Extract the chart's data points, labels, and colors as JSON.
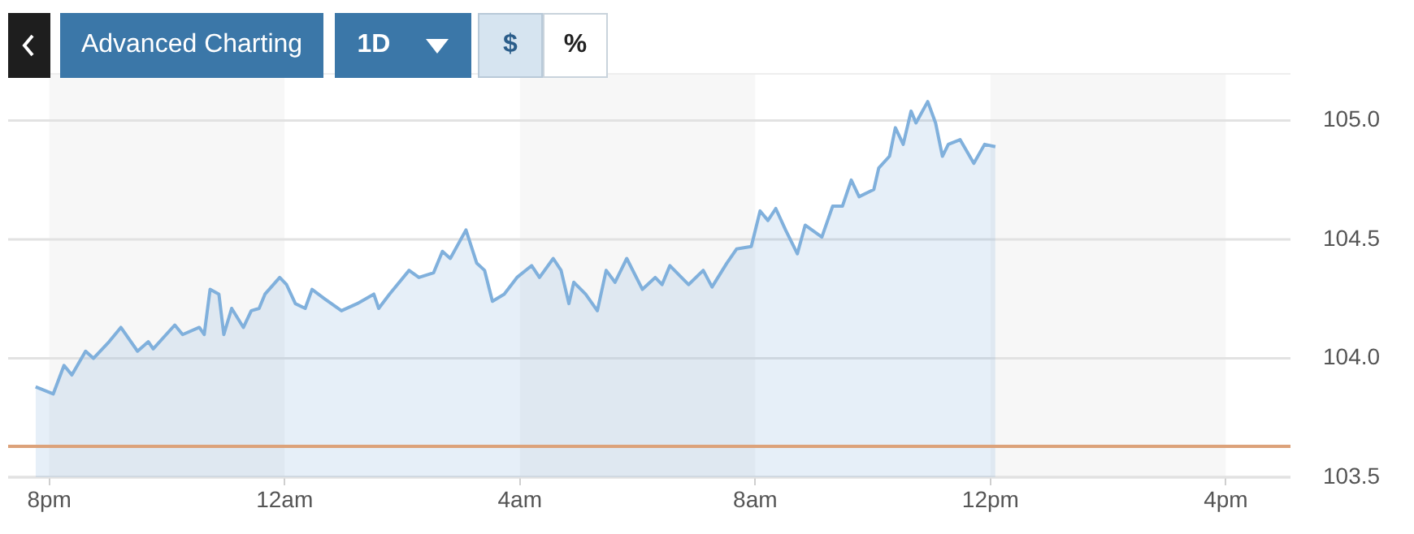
{
  "chart_data": {
    "type": "area",
    "annotations": [
      "Advanced Charting",
      "1D",
      "$",
      "%"
    ],
    "x": [
      "--01-01T19:46",
      "--01-01T20:04",
      "--01-01T20:15",
      "--01-01T20:23",
      "--01-01T20:37",
      "--01-01T20:45",
      "--01-01T21:01",
      "--01-01T21:13",
      "--01-01T21:30",
      "--01-01T21:41",
      "--01-01T21:46",
      "--01-01T22:08",
      "--01-01T22:16",
      "--01-01T22:33",
      "--01-01T22:38",
      "--01-01T22:44",
      "--01-01T22:53",
      "--01-01T22:58",
      "--01-01T23:06",
      "--01-01T23:18",
      "--01-01T23:26",
      "--01-01T23:34",
      "--01-01T23:40",
      "--01-01T23:55",
      "--01-02T00:02",
      "--01-02T00:11",
      "--01-02T00:21",
      "--01-02T00:28",
      "--01-02T00:41",
      "--01-02T00:58",
      "--01-02T01:14",
      "--01-02T01:31",
      "--01-02T01:36",
      "--01-02T01:47",
      "--01-02T02:07",
      "--01-02T02:17",
      "--01-02T02:32",
      "--01-02T02:41",
      "--01-02T02:49",
      "--01-02T03:05",
      "--01-02T03:16",
      "--01-02T03:24",
      "--01-02T03:32",
      "--01-02T03:44",
      "--01-02T03:57",
      "--01-02T04:12",
      "--01-02T04:20",
      "--01-02T04:34",
      "--01-02T04:42",
      "--01-02T04:50",
      "--01-02T04:55",
      "--01-02T05:07",
      "--01-02T05:19",
      "--01-02T05:28",
      "--01-02T05:37",
      "--01-02T05:49",
      "--01-02T06:05",
      "--01-02T06:18",
      "--01-02T06:25",
      "--01-02T06:33",
      "--01-02T06:52",
      "--01-02T07:07",
      "--01-02T07:16",
      "--01-02T07:31",
      "--01-02T07:41",
      "--01-02T07:56",
      "--01-02T08:05",
      "--01-02T08:13",
      "--01-02T08:21",
      "--01-02T08:31",
      "--01-02T08:43",
      "--01-02T08:51",
      "--01-02T09:08",
      "--01-02T09:19",
      "--01-02T09:29",
      "--01-02T09:38",
      "--01-02T09:46",
      "--01-02T10:01",
      "--01-02T10:06",
      "--01-02T10:17",
      "--01-02T10:23",
      "--01-02T10:31",
      "--01-02T10:39",
      "--01-02T10:44",
      "--01-02T10:56",
      "--01-02T11:04",
      "--01-02T11:11",
      "--01-02T11:17",
      "--01-02T11:29",
      "--01-02T11:43",
      "--01-02T11:54",
      "--01-02T12:05"
    ],
    "series": [
      {
        "color": "#80b0dc",
        "values": [
          103.88,
          103.85,
          103.97,
          103.93,
          104.03,
          104.0,
          104.07,
          104.13,
          104.03,
          104.07,
          104.04,
          104.14,
          104.1,
          104.13,
          104.1,
          104.29,
          104.27,
          104.1,
          104.21,
          104.13,
          104.2,
          104.21,
          104.27,
          104.34,
          104.31,
          104.23,
          104.21,
          104.29,
          104.25,
          104.2,
          104.23,
          104.27,
          104.21,
          104.27,
          104.37,
          104.34,
          104.36,
          104.45,
          104.42,
          104.54,
          104.4,
          104.37,
          104.24,
          104.27,
          104.34,
          104.39,
          104.34,
          104.42,
          104.37,
          104.23,
          104.32,
          104.27,
          104.2,
          104.37,
          104.32,
          104.42,
          104.29,
          104.34,
          104.31,
          104.39,
          104.31,
          104.37,
          104.3,
          104.4,
          104.46,
          104.47,
          104.62,
          104.58,
          104.63,
          104.54,
          104.44,
          104.56,
          104.51,
          104.64,
          104.64,
          104.75,
          104.68,
          104.71,
          104.8,
          104.85,
          104.97,
          104.9,
          105.04,
          104.99,
          105.08,
          104.99,
          104.85,
          104.9,
          104.92,
          104.82,
          104.9,
          104.89
        ]
      }
    ],
    "xlim": [
      "--01-01T19:18",
      "--01-02T17:06"
    ],
    "xticks": [
      {
        "value": "--01-01T20:00",
        "label": "8pm"
      },
      {
        "value": "--01-02T00:00",
        "label": "12am"
      },
      {
        "value": "--01-02T04:00",
        "label": "4am"
      },
      {
        "value": "--01-02T08:00",
        "label": "8am"
      },
      {
        "value": "--01-02T12:00",
        "label": "12pm"
      },
      {
        "value": "--01-02T16:00",
        "label": "4pm"
      }
    ],
    "ylim": [
      103.5,
      105.2
    ],
    "yticks": [
      103.5,
      {
        "value": 104,
        "label": "104.0"
      },
      104.5,
      {
        "value": 105,
        "label": "105.0"
      }
    ],
    "grid": "y",
    "legend": false,
    "marker": "none",
    "line_style": "solid",
    "ref_lines": [
      {
        "axis": "y",
        "value": 103.63,
        "color": "#dca27a"
      }
    ],
    "bands": [
      {
        "axis": "x",
        "from": "--01-01T20:00",
        "to": "--01-02T00:00",
        "color": "#f7f7f7"
      },
      {
        "axis": "x",
        "from": "--01-02T04:00",
        "to": "--01-02T08:00",
        "color": "#f7f7f7"
      },
      {
        "axis": "x",
        "from": "--01-02T12:00",
        "to": "--01-02T16:00",
        "color": "#f7f7f7"
      }
    ]
  }
}
